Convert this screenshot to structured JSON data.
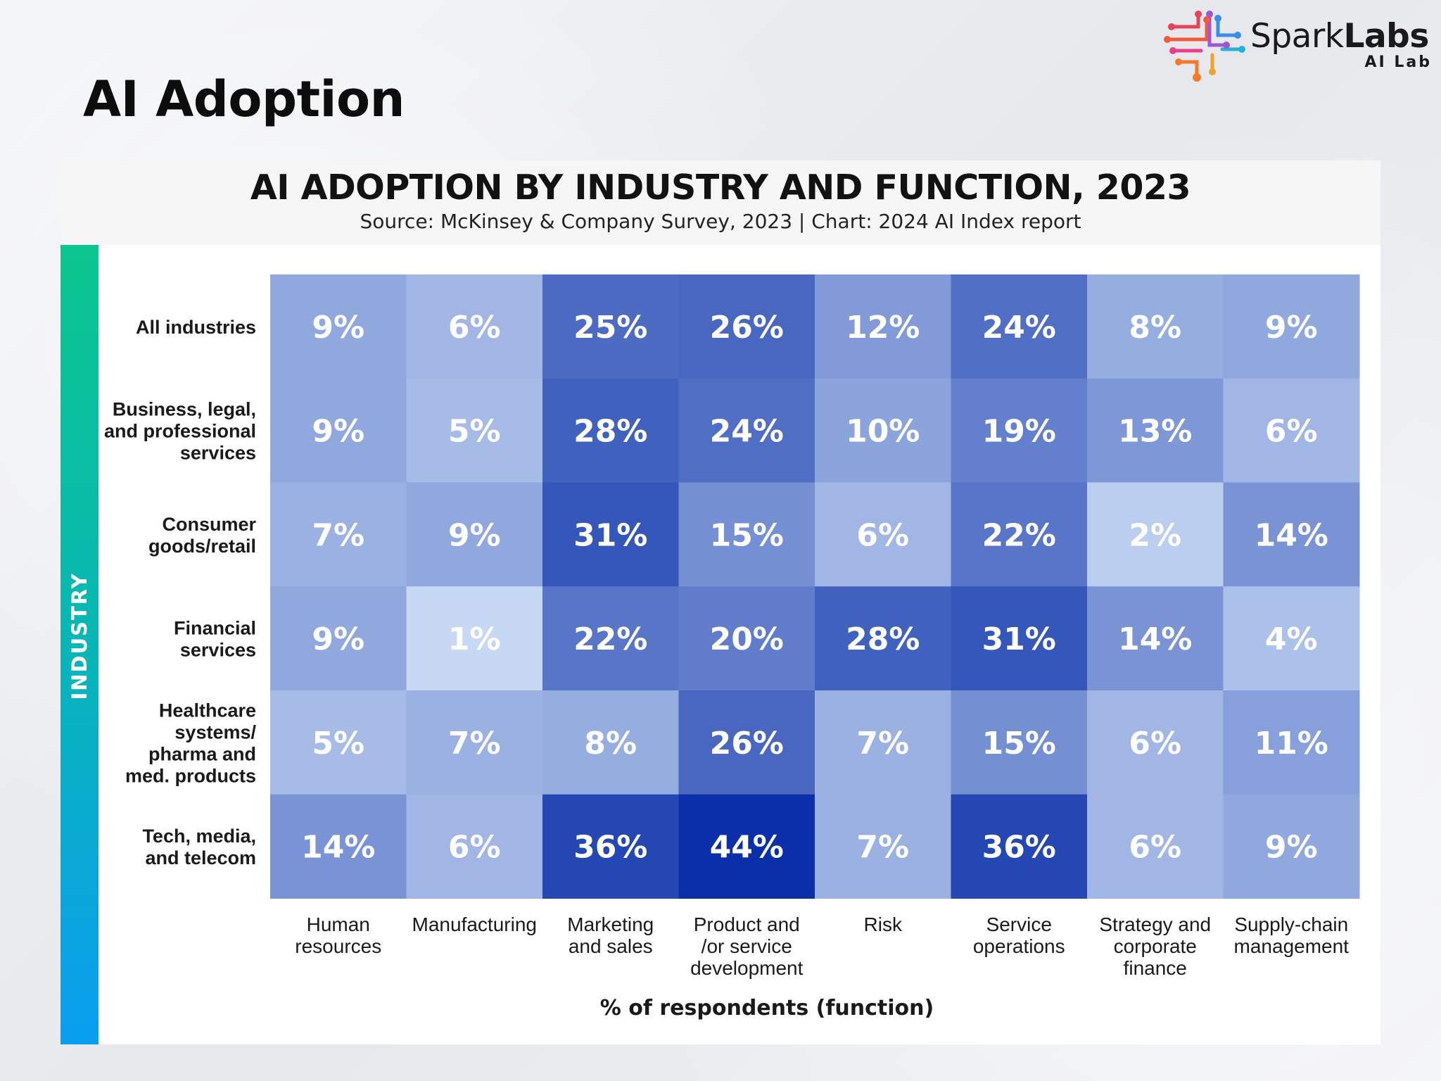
{
  "slide": {
    "title": "AI Adoption"
  },
  "logo": {
    "name_light": "Spark",
    "name_bold": "Labs",
    "subtitle": "AI Lab"
  },
  "colors": {
    "heat_low": "#c6d8f3",
    "heat_high": "#0a2fa8",
    "industry_bar_top": "#0bc68e",
    "industry_bar_bottom": "#0a9ef0"
  },
  "chart_data": {
    "type": "heatmap",
    "title": "AI ADOPTION BY INDUSTRY AND FUNCTION, 2023",
    "subtitle": "Source: McKinsey & Company Survey, 2023 | Chart: 2024 AI Index report",
    "ylabel": "INDUSTRY",
    "xlabel": "% of respondents (function)",
    "unit": "%",
    "rows": [
      [
        "All industries"
      ],
      [
        "Business, legal,",
        "and professional",
        "services"
      ],
      [
        "Consumer",
        "goods/retail"
      ],
      [
        "Financial",
        "services"
      ],
      [
        "Healthcare",
        "systems/",
        "pharma and",
        "med. products"
      ],
      [
        "Tech, media,",
        "and telecom"
      ]
    ],
    "columns": [
      [
        "Human",
        "resources"
      ],
      [
        "Manufacturing"
      ],
      [
        "Marketing",
        "and sales"
      ],
      [
        "Product and",
        "/or service",
        "development"
      ],
      [
        "Risk"
      ],
      [
        "Service",
        "operations"
      ],
      [
        "Strategy and",
        "corporate",
        "finance"
      ],
      [
        "Supply-chain",
        "management"
      ]
    ],
    "values": [
      [
        9,
        6,
        25,
        26,
        12,
        24,
        8,
        9
      ],
      [
        9,
        5,
        28,
        24,
        10,
        19,
        13,
        6
      ],
      [
        7,
        9,
        31,
        15,
        6,
        22,
        2,
        14
      ],
      [
        9,
        1,
        22,
        20,
        28,
        31,
        14,
        4
      ],
      [
        5,
        7,
        8,
        26,
        7,
        15,
        6,
        11
      ],
      [
        14,
        6,
        36,
        44,
        7,
        36,
        6,
        9
      ]
    ],
    "value_range": [
      1,
      44
    ]
  }
}
